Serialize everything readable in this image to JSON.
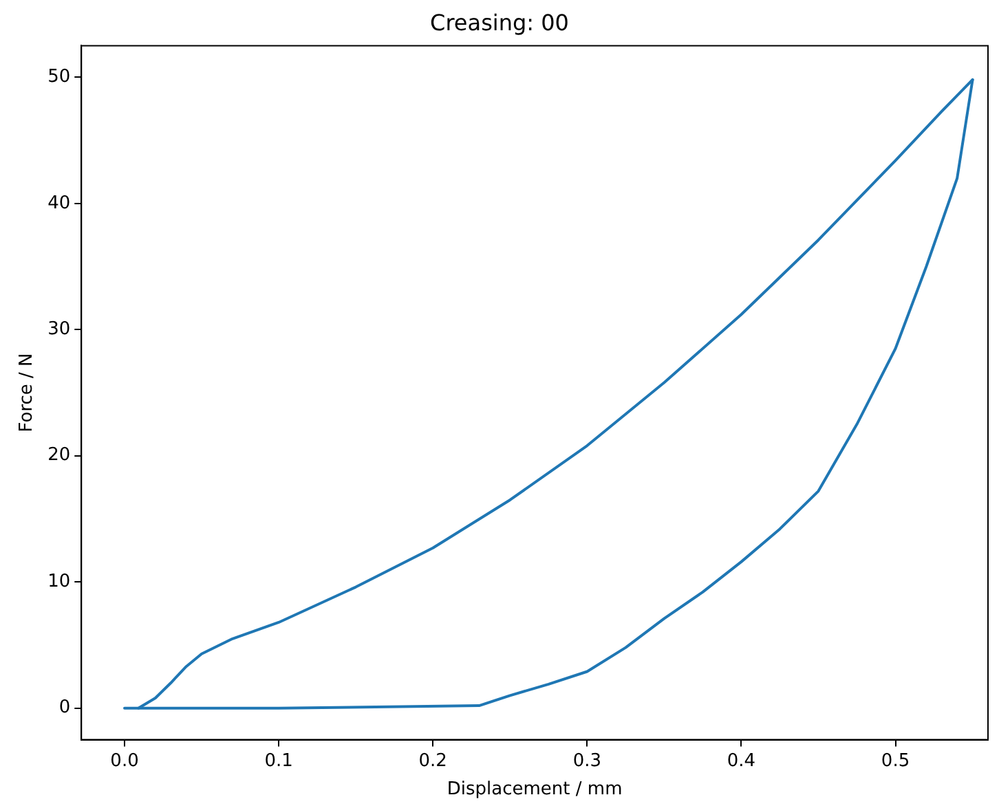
{
  "chart_data": {
    "type": "line",
    "title": "Creasing: 00",
    "xlabel": "Displacement / mm",
    "ylabel": "Force / N",
    "xlim": [
      -0.028,
      0.56
    ],
    "ylim": [
      -2.5,
      52.5
    ],
    "xticks": [
      {
        "value": 0,
        "label": "0.0"
      },
      {
        "value": 0.1,
        "label": "0.1"
      },
      {
        "value": 0.2,
        "label": "0.2"
      },
      {
        "value": 0.3,
        "label": "0.3"
      },
      {
        "value": 0.4,
        "label": "0.4"
      },
      {
        "value": 0.5,
        "label": "0.5"
      }
    ],
    "yticks": [
      0,
      10,
      20,
      30,
      40,
      50
    ],
    "grid": false,
    "legend": false,
    "marker": "none",
    "line_style": "solid",
    "series": [
      {
        "color": "#1f77b4",
        "x": [
          0.009,
          0.02,
          0.03,
          0.04,
          0.05,
          0.07,
          0.1,
          0.15,
          0.2,
          0.25,
          0.3,
          0.35,
          0.4,
          0.45,
          0.5,
          0.53,
          0.55
        ],
        "values": [
          0,
          0.8,
          2.0,
          3.3,
          4.3,
          5.5,
          6.8,
          9.6,
          12.7,
          16.5,
          20.8,
          25.8,
          31.2,
          37.1,
          43.4,
          47.3,
          49.8
        ]
      },
      {
        "color": "#1f77b4",
        "x": [
          0,
          0.1,
          0.23,
          0.25,
          0.275,
          0.3,
          0.325,
          0.35,
          0.375,
          0.4,
          0.425,
          0.45,
          0.475,
          0.5,
          0.52,
          0.54,
          0.55
        ],
        "values": [
          0,
          0,
          0.2,
          1.0,
          1.9,
          2.9,
          4.8,
          7.1,
          9.2,
          11.6,
          14.2,
          17.2,
          22.5,
          28.5,
          35,
          42,
          49.8
        ]
      }
    ]
  }
}
